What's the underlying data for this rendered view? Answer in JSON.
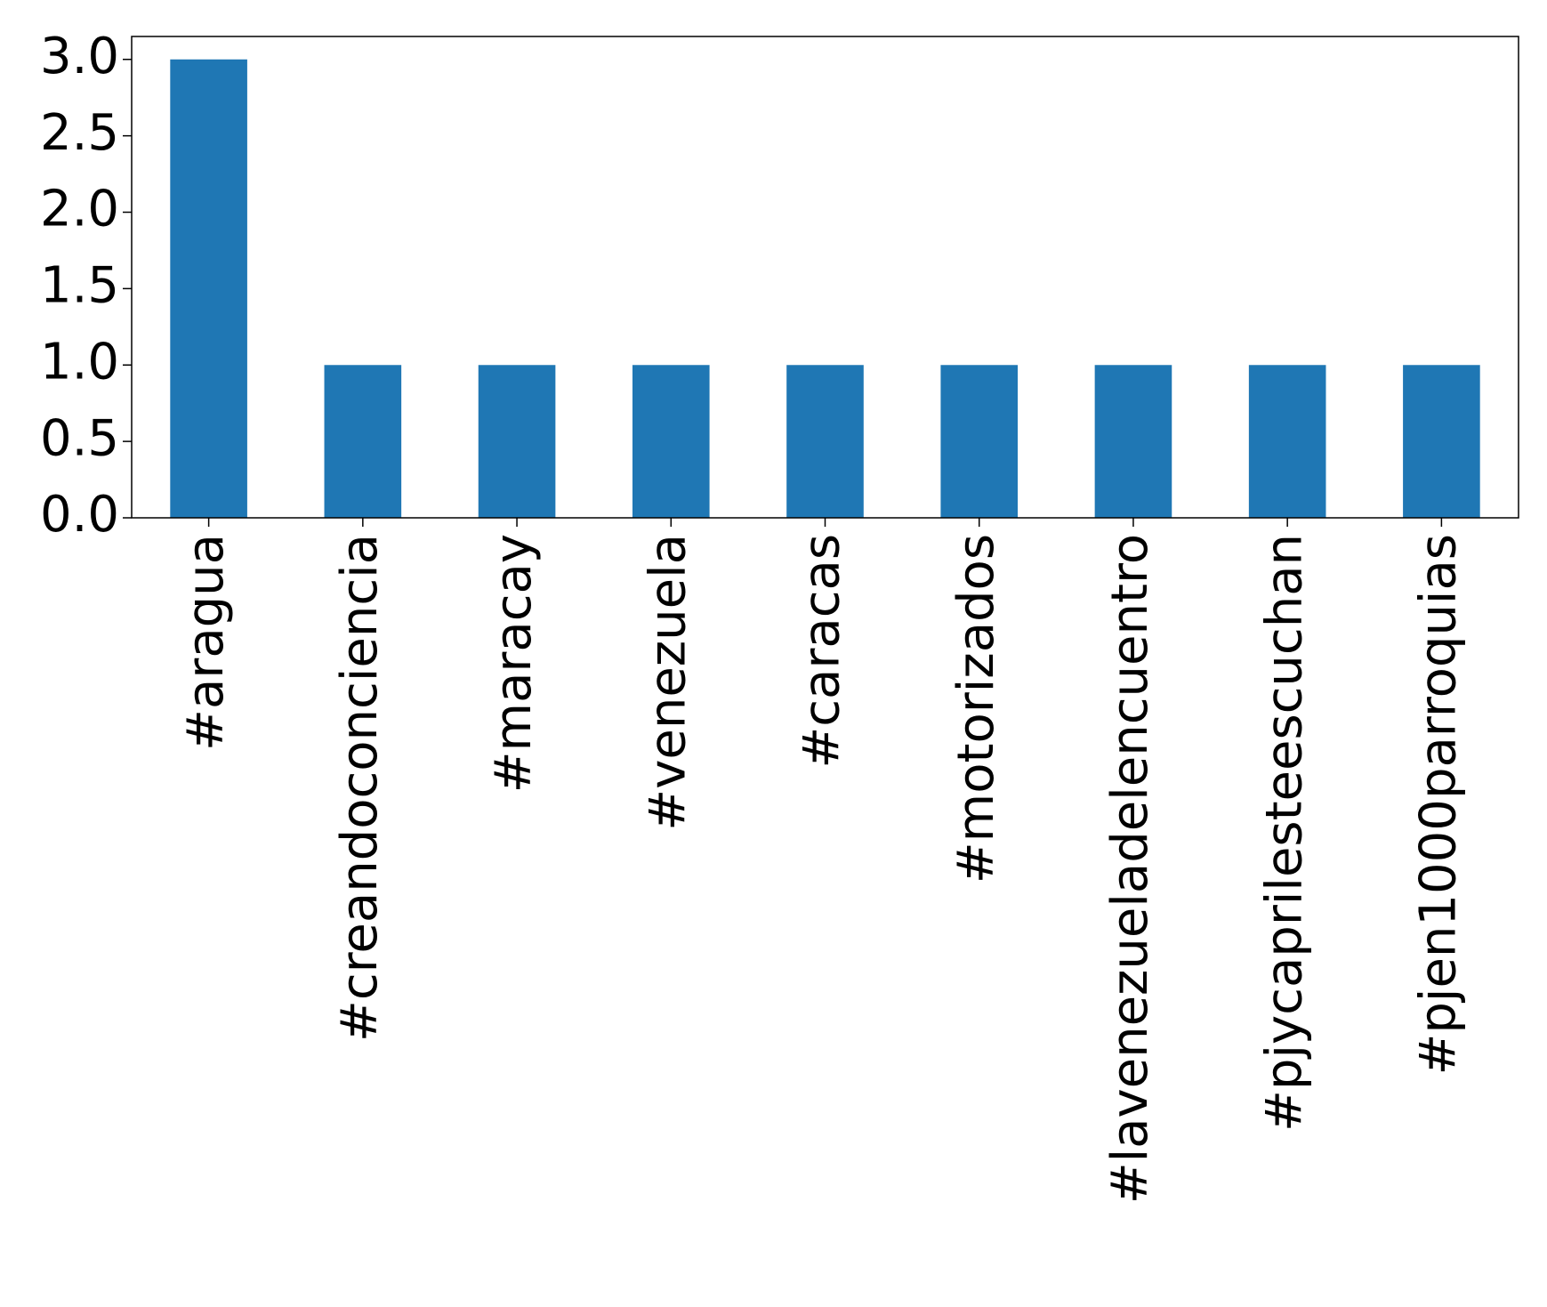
{
  "chart_data": {
    "type": "bar",
    "categories": [
      "#aragua",
      "#creandoconciencia",
      "#maracay",
      "#venezuela",
      "#caracas",
      "#motorizados",
      "#lavenezueladelencuentro",
      "#pjycaprilesteescuchan",
      "#pjen1000parroquias"
    ],
    "values": [
      3,
      1,
      1,
      1,
      1,
      1,
      1,
      1,
      1
    ],
    "color": "#1f77b4",
    "ylim": [
      0,
      3.15
    ],
    "yticks": [
      {
        "value": 0,
        "label": "0.0"
      },
      {
        "value": 0.5,
        "label": "0.5"
      },
      {
        "value": 1,
        "label": "1.0"
      },
      {
        "value": 1.5,
        "label": "1.5"
      },
      {
        "value": 2,
        "label": "2.0"
      },
      {
        "value": 2.5,
        "label": "2.5"
      },
      {
        "value": 3,
        "label": "3.0"
      }
    ],
    "grid": false
  }
}
